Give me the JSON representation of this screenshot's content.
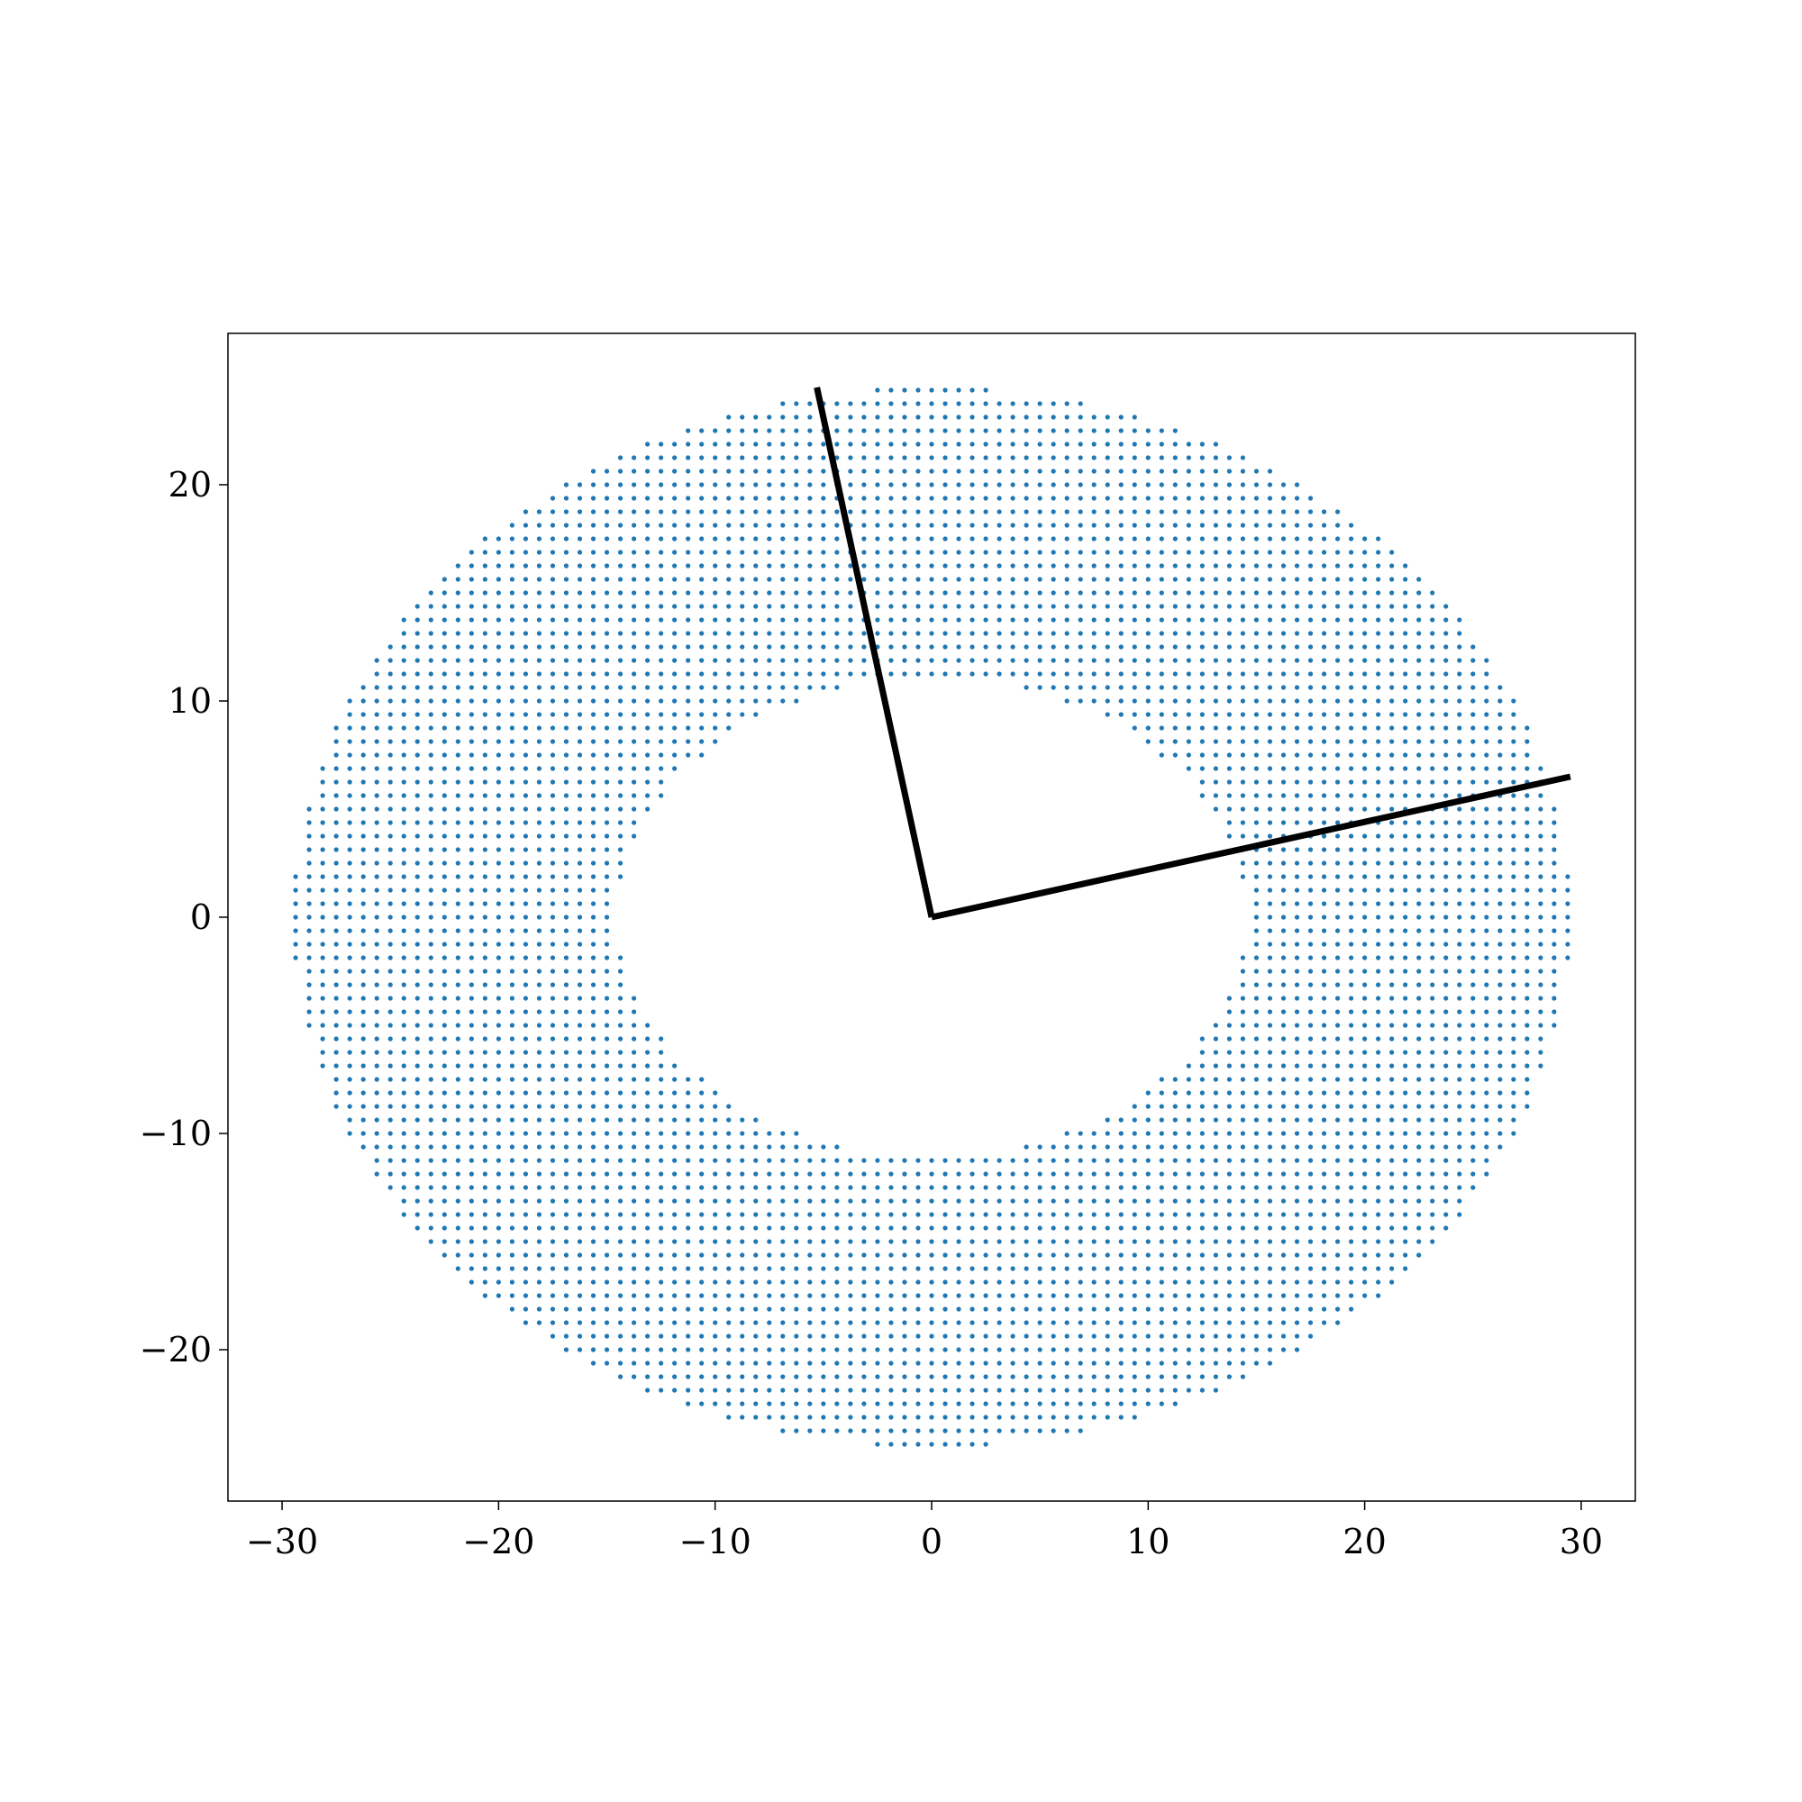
{
  "chart_data": {
    "type": "scatter",
    "title": "",
    "xlabel": "",
    "ylabel": "",
    "xlim": [
      -32.5,
      32.5
    ],
    "ylim": [
      -27,
      27
    ],
    "grid": false,
    "legend": "none",
    "xticks": [
      -30,
      -20,
      -10,
      0,
      10,
      20,
      30
    ],
    "yticks": [
      -20,
      -10,
      0,
      10,
      20
    ],
    "xtick_labels": [
      "−30",
      "−20",
      "−10",
      "0",
      "10",
      "20",
      "30"
    ],
    "ytick_labels": [
      "−20",
      "−10",
      "0",
      "10",
      "20"
    ],
    "points": {
      "description_rule": "grid points (x, y) with spacing 0.625 lying inside an outer ellipse and outside an inner ellipse",
      "color": "#1f77b4",
      "grid_spacing": 0.625,
      "outer_ellipse": {
        "a": 29.5,
        "b": 24.5
      },
      "inner_ellipse": {
        "a": 14.5,
        "b": 11.0
      }
    },
    "lines": [
      {
        "color": "#000000",
        "x": [
          0,
          29.5
        ],
        "y": [
          0,
          6.5
        ]
      },
      {
        "color": "#000000",
        "x": [
          0,
          -5.3
        ],
        "y": [
          0,
          24.5
        ]
      }
    ]
  }
}
